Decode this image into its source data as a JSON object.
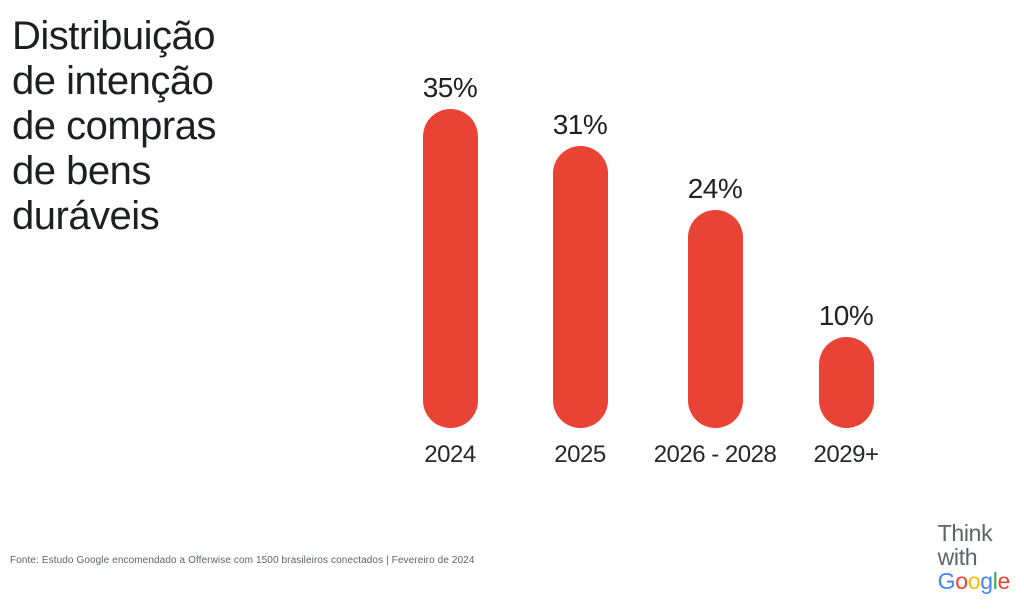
{
  "title": "Distribuição\nde intenção\nde compras\nde bens\nduráveis",
  "chart_data": {
    "type": "bar",
    "title": "Distribuição de intenção de compras de bens duráveis",
    "categories": [
      "2024",
      "2025",
      "2026 - 2028",
      "2029+"
    ],
    "values": [
      35,
      31,
      24,
      10
    ],
    "value_labels": [
      "35%",
      "31%",
      "24%",
      "10%"
    ],
    "xlabel": "",
    "ylabel": "",
    "ylim": [
      0,
      40
    ],
    "unit": "%",
    "grid": false,
    "legend": false,
    "bar_shape": "pill",
    "bar_color": "#e94335"
  },
  "footer": {
    "source": "Fonte: Estudo Google encomendado a Offerwise com 1500 brasileiros conectados | Fevereiro de 2024"
  },
  "logo": {
    "line1": "Think",
    "line2": "with",
    "google_letters": [
      {
        "ch": "G",
        "color": "#4285F4"
      },
      {
        "ch": "o",
        "color": "#EA4335"
      },
      {
        "ch": "o",
        "color": "#FBBC05"
      },
      {
        "ch": "g",
        "color": "#4285F4"
      },
      {
        "ch": "l",
        "color": "#34A853"
      },
      {
        "ch": "e",
        "color": "#EA4335"
      }
    ],
    "text_color": "#5f6368"
  },
  "colors": {
    "bar": "#e94335",
    "text_dark": "#202124",
    "footer_gray": "#5f6368",
    "background": "#ffffff"
  }
}
